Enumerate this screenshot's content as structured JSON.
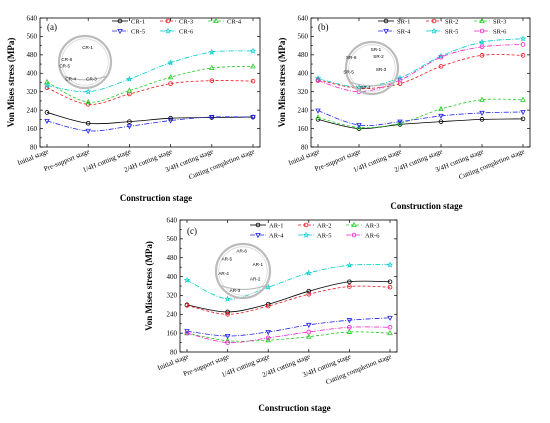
{
  "chart_data": [
    {
      "panel_label": "(a)",
      "type": "line",
      "xlabel": "Construction stage",
      "ylabel": "Von Mises stress (MPa)",
      "ylim": [
        80,
        640
      ],
      "yticks": [
        80,
        160,
        240,
        320,
        400,
        480,
        560,
        640
      ],
      "categories": [
        "Initial stage",
        "Pre-support stage",
        "1/4H cutting stage",
        "2/4H cutting stage",
        "3/4H cutting stage",
        "Cutting completion stage"
      ],
      "series": [
        {
          "name": "CR-1",
          "color": "#000000",
          "marker": "circle",
          "dash": "",
          "values": [
            230,
            183,
            190,
            205,
            208,
            210
          ]
        },
        {
          "name": "CR-3",
          "color": "#e8141c",
          "marker": "circle",
          "dash": "3,2",
          "values": [
            337,
            265,
            310,
            355,
            368,
            366
          ]
        },
        {
          "name": "CR-4",
          "color": "#22cc22",
          "marker": "triangle-up",
          "dash": "3,2",
          "values": [
            362,
            275,
            325,
            383,
            423,
            430
          ]
        },
        {
          "name": "CR-5",
          "color": "#2222ee",
          "marker": "triangle-down",
          "dash": "5,1.5,1,1.5",
          "values": [
            193,
            150,
            170,
            195,
            210,
            210
          ]
        },
        {
          "name": "CR-6",
          "color": "#00cccc",
          "marker": "star",
          "dash": "5,1.5,1,1.5",
          "values": [
            347,
            320,
            375,
            446,
            492,
            497
          ]
        }
      ],
      "inset_labels": [
        "CR-1",
        "CR-6",
        "CR-5",
        "CR-4",
        "CR-3"
      ]
    },
    {
      "panel_label": "(b)",
      "type": "line",
      "xlabel": "Construction stage",
      "ylabel": "Von Mises stress (MPa)",
      "ylim": [
        80,
        640
      ],
      "yticks": [
        80,
        160,
        240,
        320,
        400,
        480,
        560,
        640
      ],
      "categories": [
        "Initial stage",
        "Pre-support stage",
        "1/4H cutting stage",
        "2/4H cutting stage",
        "3/4H cutting stage",
        "Cutting completion stage"
      ],
      "series": [
        {
          "name": "SR-1",
          "color": "#000000",
          "marker": "circle",
          "dash": "",
          "values": [
            200,
            160,
            178,
            190,
            200,
            202
          ]
        },
        {
          "name": "SR-2",
          "color": "#e8141c",
          "marker": "circle",
          "dash": "3,2",
          "values": [
            372,
            335,
            355,
            430,
            478,
            478
          ]
        },
        {
          "name": "SR-3",
          "color": "#22cc22",
          "marker": "triangle-up",
          "dash": "3,2",
          "values": [
            208,
            165,
            183,
            245,
            285,
            285
          ]
        },
        {
          "name": "SR-4",
          "color": "#2222ee",
          "marker": "triangle-down",
          "dash": "5,1.5,1,1.5",
          "values": [
            238,
            175,
            190,
            215,
            228,
            232
          ]
        },
        {
          "name": "SR-5",
          "color": "#00cccc",
          "marker": "star",
          "dash": "5,1.5,1,1.5",
          "values": [
            378,
            340,
            380,
            475,
            535,
            550
          ]
        },
        {
          "name": "SR-6",
          "color": "#ee22cc",
          "marker": "circle",
          "dash": "5,1.5,1,1.5",
          "values": [
            368,
            320,
            370,
            470,
            515,
            525
          ]
        }
      ],
      "inset_labels": [
        "SR-1",
        "SR-2",
        "SR-6",
        "SR-5",
        "SR-3",
        "SR-4"
      ]
    },
    {
      "panel_label": "(c)",
      "type": "line",
      "xlabel": "Construction stage",
      "ylabel": "Von Mises stress (MPa)",
      "ylim": [
        80,
        640
      ],
      "yticks": [
        80,
        160,
        240,
        320,
        400,
        480,
        560,
        640
      ],
      "categories": [
        "Initial stage",
        "Pre-support stage",
        "1/4H cutting stage",
        "2/4H cutting stage",
        "3/4H cutting stage",
        "Cutting completion stage"
      ],
      "series": [
        {
          "name": "AR-1",
          "color": "#000000",
          "marker": "circle",
          "dash": "",
          "values": [
            280,
            250,
            283,
            338,
            378,
            378
          ]
        },
        {
          "name": "AR-2",
          "color": "#e8141c",
          "marker": "circle",
          "dash": "3,2",
          "values": [
            278,
            240,
            275,
            325,
            358,
            355
          ]
        },
        {
          "name": "AR-3",
          "color": "#22cc22",
          "marker": "triangle-up",
          "dash": "3,2",
          "values": [
            160,
            128,
            130,
            145,
            165,
            160
          ]
        },
        {
          "name": "AR-4",
          "color": "#2222ee",
          "marker": "triangle-down",
          "dash": "5,1.5,1,1.5",
          "values": [
            168,
            148,
            165,
            195,
            215,
            225
          ]
        },
        {
          "name": "AR-5",
          "color": "#00cccc",
          "marker": "star",
          "dash": "5,1.5,1,1.5",
          "values": [
            385,
            305,
            355,
            415,
            448,
            450
          ]
        },
        {
          "name": "AR-6",
          "color": "#ee22cc",
          "marker": "circle",
          "dash": "5,1.5,1,1.5",
          "values": [
            160,
            120,
            140,
            165,
            185,
            185
          ]
        }
      ],
      "inset_labels": [
        "AR-6",
        "AR-5",
        "AR-1",
        "AR-4",
        "AR-2",
        "AR-3"
      ]
    }
  ]
}
